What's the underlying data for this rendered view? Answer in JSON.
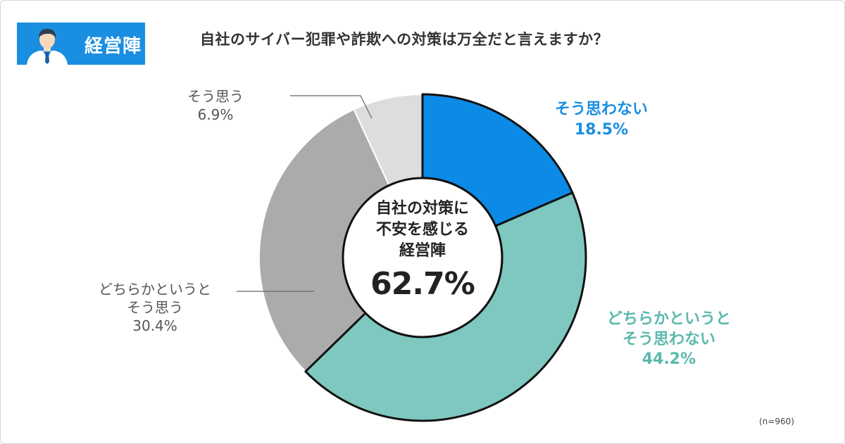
{
  "badge": {
    "label": "経営陣",
    "icon": "businessman-icon"
  },
  "title": "自社のサイバー犯罪や詐欺への対策は万全だと言えますか？",
  "center": {
    "line1": "自社の対策に",
    "line2": "不安を感じる",
    "line3": "経営陣",
    "value": "62.7%"
  },
  "labels": {
    "s0": {
      "line1": "そう思わない",
      "line2": "",
      "pct": "18.5%"
    },
    "s1": {
      "line1": "どちらかというと",
      "line2": "そう思わない",
      "pct": "44.2%"
    },
    "s2": {
      "line1": "どちらかというと",
      "line2": "そう思う",
      "pct": "30.4%"
    },
    "s3": {
      "line1": "そう思う",
      "line2": "",
      "pct": "6.9%"
    }
  },
  "note": "(n=960)",
  "chart_data": {
    "type": "pie",
    "style": "donut",
    "title": "自社のサイバー犯罪や詐欺への対策は万全だと言えますか？",
    "categories": [
      "そう思わない",
      "どちらかというと そう思わない",
      "どちらかというと そう思う",
      "そう思う"
    ],
    "values": [
      18.5,
      44.2,
      30.4,
      6.9
    ],
    "colors": [
      "#0b8ae6",
      "#7ec8c0",
      "#ababab",
      "#dddddd"
    ],
    "highlighted": [
      0,
      1
    ],
    "center_label": "自社の対策に不安を感じる経営陣 62.7%",
    "legend": "none"
  }
}
